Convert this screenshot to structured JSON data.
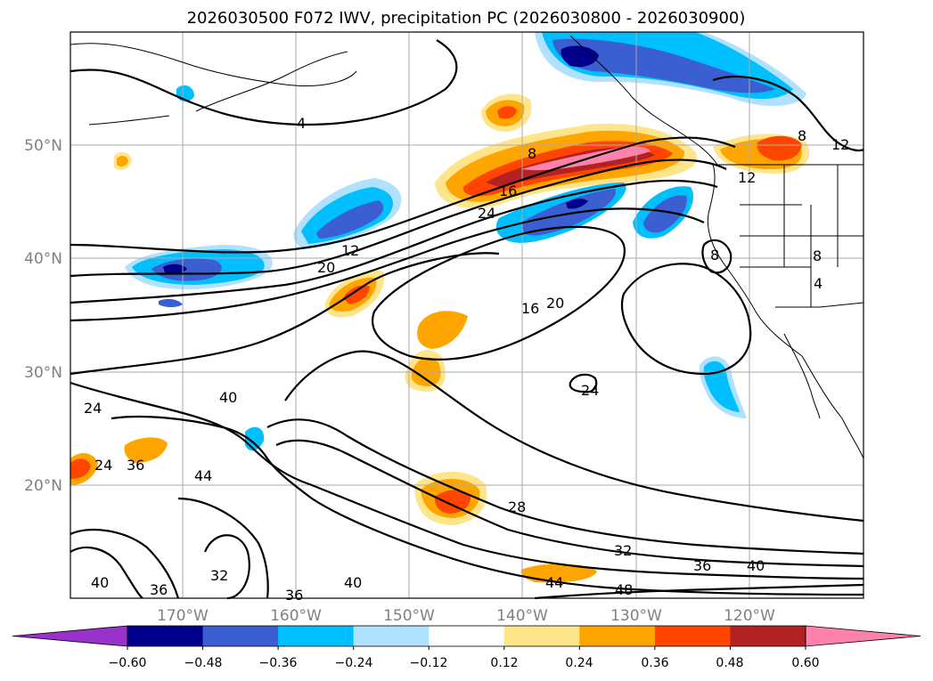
{
  "figure": {
    "title": "2026030500 F072 IWV, precipitation PC (2026030800 - 2026030900)"
  },
  "map": {
    "lon_labels": [
      "170°W",
      "160°W",
      "150°W",
      "140°W",
      "130°W",
      "120°W"
    ],
    "lat_labels": [
      "50°N",
      "40°N",
      "30°N",
      "20°N"
    ],
    "gridlines": "on"
  },
  "contour_labels": [
    {
      "text": "4"
    },
    {
      "text": "8"
    },
    {
      "text": "12"
    },
    {
      "text": "16"
    },
    {
      "text": "20"
    },
    {
      "text": "24"
    },
    {
      "text": "12"
    },
    {
      "text": "8"
    },
    {
      "text": "8"
    },
    {
      "text": "4"
    },
    {
      "text": "16"
    },
    {
      "text": "20"
    },
    {
      "text": "24"
    },
    {
      "text": "40"
    },
    {
      "text": "24"
    },
    {
      "text": "24"
    },
    {
      "text": "36"
    },
    {
      "text": "44"
    },
    {
      "text": "28"
    },
    {
      "text": "32"
    },
    {
      "text": "36"
    },
    {
      "text": "40"
    },
    {
      "text": "32"
    },
    {
      "text": "40"
    },
    {
      "text": "36"
    },
    {
      "text": "36"
    },
    {
      "text": "40"
    },
    {
      "text": "44"
    },
    {
      "text": "48"
    },
    {
      "text": "8"
    },
    {
      "text": "12"
    }
  ],
  "colorbar": {
    "ticks": [
      "−0.60",
      "−0.48",
      "−0.36",
      "−0.24",
      "−0.12",
      "0.12",
      "0.24",
      "0.36",
      "0.48",
      "0.60"
    ],
    "colors": [
      "#9932cc",
      "#00008b",
      "#3b5fd0",
      "#00bfff",
      "#b0e2ff",
      "#ffffff",
      "#ffe58a",
      "#ffa500",
      "#ff4500",
      "#b22222",
      "#ff82ab"
    ],
    "extend": "both"
  }
}
